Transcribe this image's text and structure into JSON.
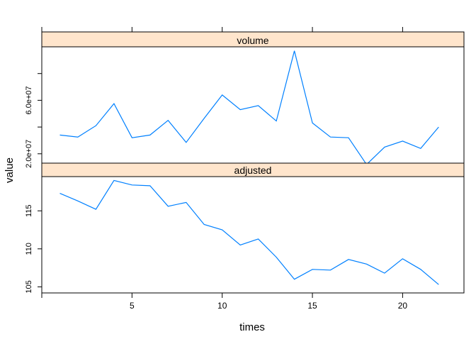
{
  "chart_data": {
    "type": "line",
    "xlabel": "times",
    "ylabel": "value",
    "x": [
      1,
      2,
      3,
      4,
      5,
      6,
      7,
      8,
      9,
      10,
      11,
      12,
      13,
      14,
      15,
      16,
      17,
      18,
      19,
      20,
      21,
      22
    ],
    "x_ticks": [
      5,
      10,
      15,
      20
    ],
    "xlim": [
      0.0,
      23.4
    ],
    "line_color": "#0080ff",
    "strip_color": "#ffe5cc",
    "panels": [
      {
        "name": "volume",
        "y_ticks": [
          20000000,
          40000000,
          60000000,
          80000000
        ],
        "y_tick_labels": [
          "2.0e+07",
          "",
          "6.0e+07",
          ""
        ],
        "ylim": [
          13000000,
          100000000
        ],
        "values": [
          34000000,
          32500000,
          41000000,
          57500000,
          32000000,
          34000000,
          45000000,
          28500000,
          46500000,
          64000000,
          53000000,
          56000000,
          44500000,
          97000000,
          43000000,
          32500000,
          32000000,
          12000000,
          25000000,
          29500000,
          24000000,
          40000000
        ]
      },
      {
        "name": "adjusted",
        "y_ticks": [
          105,
          110,
          115
        ],
        "y_tick_labels": [
          "105",
          "110",
          "115"
        ],
        "ylim": [
          104.2,
          119.5
        ],
        "values": [
          117.3,
          116.3,
          115.2,
          119.0,
          118.4,
          118.3,
          115.6,
          116.1,
          113.2,
          112.5,
          110.5,
          111.3,
          108.9,
          106.0,
          107.3,
          107.2,
          108.6,
          108.0,
          106.8,
          108.7,
          107.3,
          105.3
        ]
      }
    ]
  }
}
